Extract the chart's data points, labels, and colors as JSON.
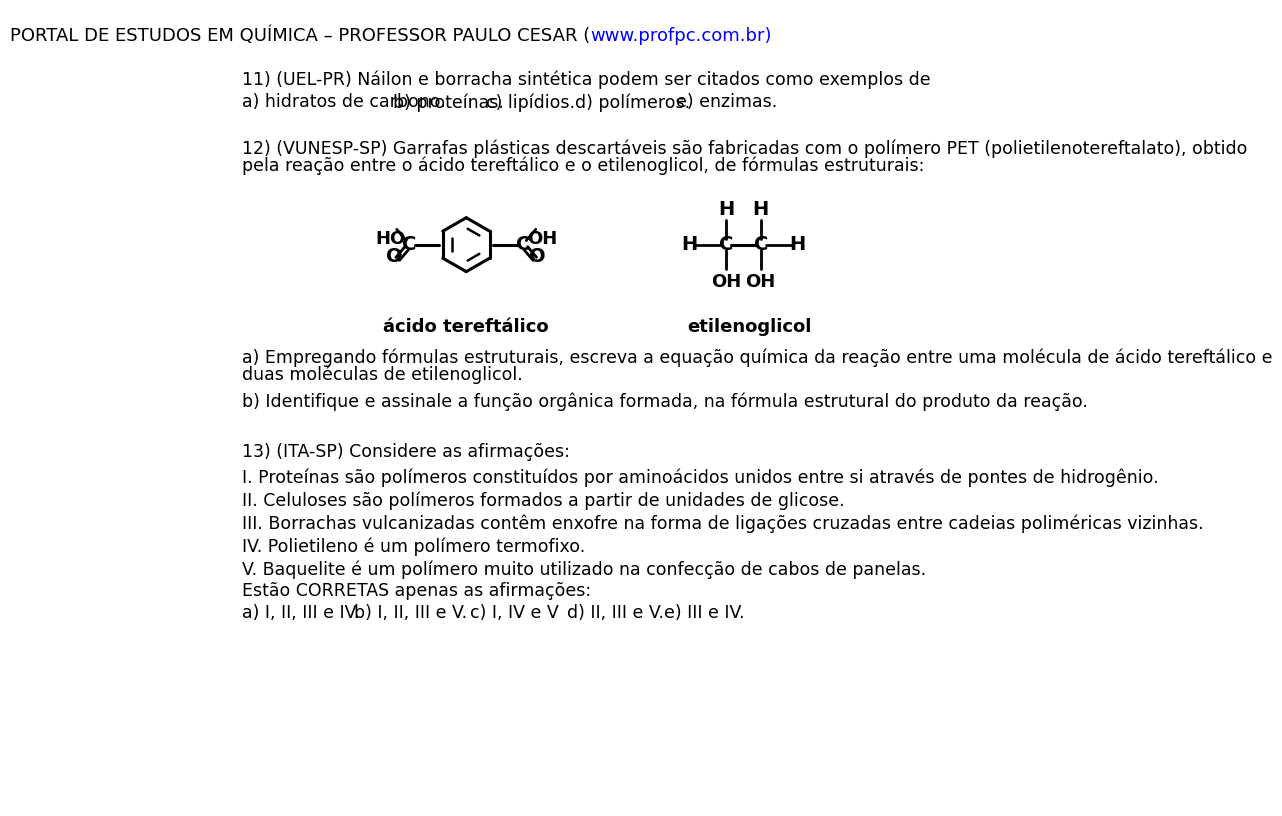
{
  "title_prefix": "PORTAL DE ESTUDOS EM QUÍMICA – PROFESSOR PAULO CESAR (",
  "title_link": "www.profpc.com.br",
  "title_suffix": ")",
  "title_fontsize": 13,
  "body_fontsize": 12.5,
  "bg_color": "#ffffff",
  "text_color": "#000000",
  "link_color": "#0000ff",
  "lm": 30,
  "q11_text": "11) (UEL-PR) Náilon e borracha sintética podem ser citados como exemplos de",
  "q11_opts_a": "a) hidratos de carbono.",
  "q11_opts_b": "b) proteínas.",
  "q11_opts_c": "c) lipídios.",
  "q11_opts_d": "d) polímeros.",
  "q11_opts_e": "e) enzimas.",
  "q12_text1": "12) (VUNESP-SP) Garrafas plásticas descartáveis são fabricadas com o polímero PET (polietilenotereftalato), obtido",
  "q12_text2": "pela reação entre o ácido tereftálico e o etilenoglicol, de fórmulas estruturais:",
  "label_acido": "ácido tereftálico",
  "label_etilenoglicol": "etilenoglicol",
  "qa_text1": "a) Empregando fórmulas estruturais, escreva a equação química da reação entre uma molécula de ácido tereftálico e",
  "qa_text2": "duas moléculas de etilenoglicol.",
  "qb_text": "b) Identifique e assinale a função orgânica formada, na fórmula estrutural do produto da reação.",
  "q13_header": "13) (ITA-SP) Considere as afirmações:",
  "q13_I": "I. Proteínas são polímeros constituídos por aminoácidos unidos entre si através de pontes de hidrogênio.",
  "q13_II": "II. Celuloses são polímeros formados a partir de unidades de glicose.",
  "q13_III": "III. Borrachas vulcanizadas contêm enxofre na forma de ligações cruzadas entre cadeias poliméricas vizinhas.",
  "q13_IV": "IV. Polietileno é um polímero termofixo.",
  "q13_V": "V. Baquelite é um polímero muito utilizado na confecção de cabos de panelas.",
  "q13_corretas": "Estão CORRETAS apenas as afirmações:",
  "q13_opts_a": "a) I, II, III e IV.",
  "q13_opts_b": "b) I, II, III e V.",
  "q13_opts_c": "c) I, IV e V",
  "q13_opts_d": "d) II, III e V.",
  "q13_opts_e": "e) III e IV."
}
